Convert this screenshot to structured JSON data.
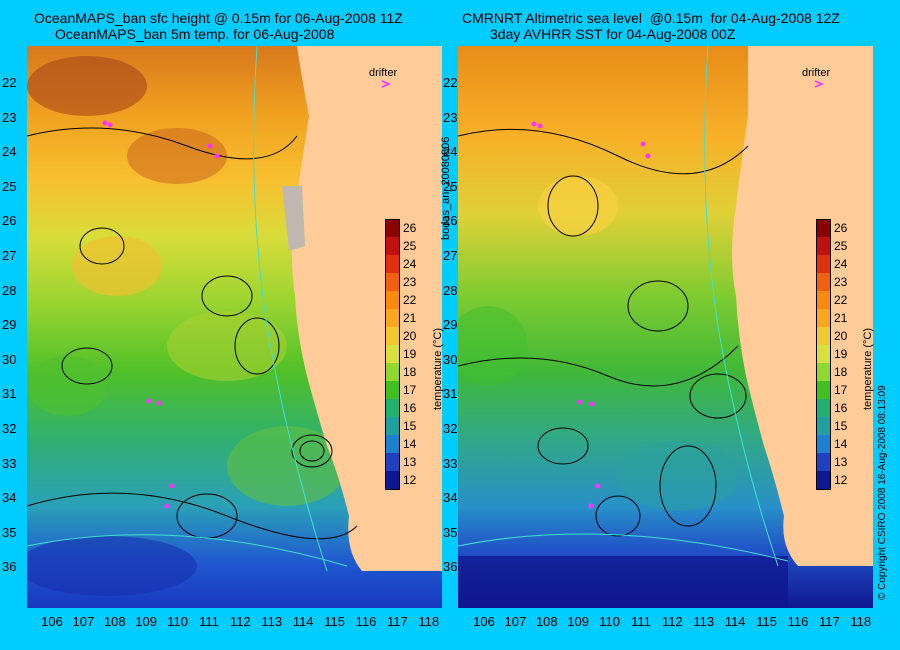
{
  "left_panel": {
    "title_line1": "OceanMAPS_ban sfc height @ 0.15m for 06-Aug-2008 11Z",
    "title_line2": "OceanMAPS_ban 5m temp. for 06-Aug-2008"
  },
  "right_panel": {
    "title_line1": "CMRNRT Altimetric sea level  @0.15m  for 04-Aug-2008 12Z",
    "title_line2": "3day AVHRR SST for 04-Aug-2008 00Z"
  },
  "legend_label": "drifter",
  "colorbar": {
    "label": "temperature (°C)",
    "ticks": [
      "26",
      "25",
      "24",
      "23",
      "22",
      "21",
      "20",
      "19",
      "18",
      "17",
      "16",
      "15",
      "14",
      "13",
      "12"
    ],
    "colors": [
      "#8b0000",
      "#c01010",
      "#e03010",
      "#f06010",
      "#f88a10",
      "#f8a820",
      "#f0c830",
      "#d8e040",
      "#90d830",
      "#40c020",
      "#20b070",
      "#20a0a0",
      "#2080d0",
      "#2040c0",
      "#101890"
    ]
  },
  "lat_labels": [
    "22",
    "23",
    "24",
    "25",
    "26",
    "27",
    "28",
    "29",
    "30",
    "31",
    "32",
    "33",
    "34",
    "35",
    "36"
  ],
  "lon_labels": [
    "106",
    "107",
    "108",
    "109",
    "110",
    "111",
    "112",
    "113",
    "114",
    "115",
    "116",
    "117",
    "118"
  ],
  "side_label_middle": "bodas_an_20080806",
  "side_label_right": "© Copyright CSIRO 2008    16-Aug-2008 08:13:09",
  "colors": {
    "background": "#00ccff",
    "land": "#ffcc99",
    "contour": "#000000",
    "bathymetry": "#40e0d0",
    "drifter": "#ff33ff"
  }
}
